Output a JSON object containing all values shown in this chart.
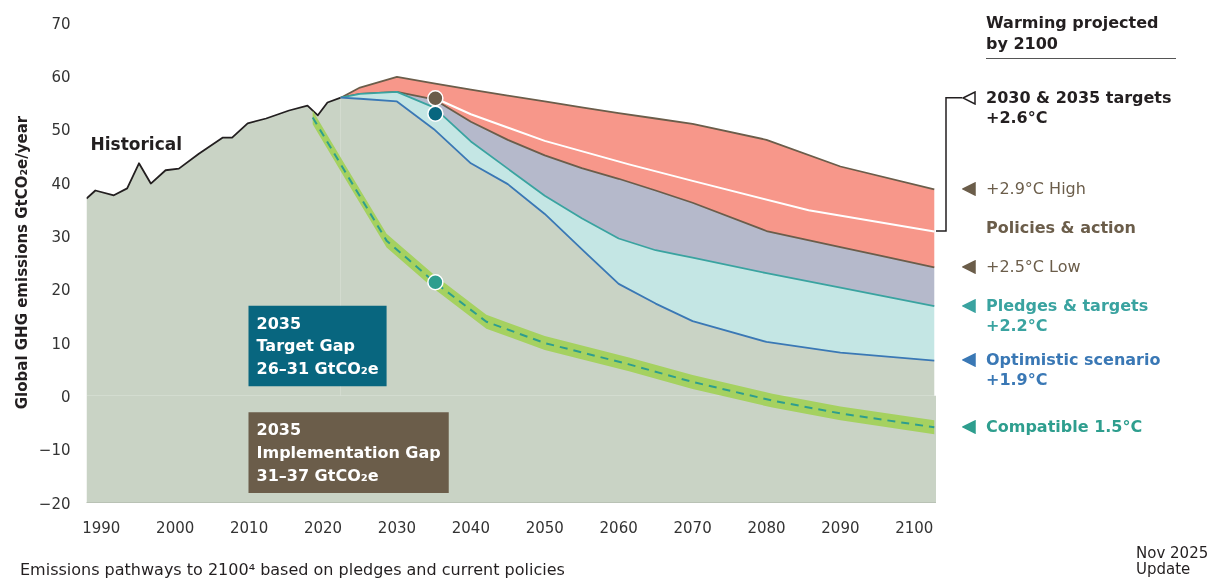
{
  "chart_data": {
    "type": "line",
    "legend": "right",
    "ylabel": "Global GHG emissions GtCO₂e/year",
    "legend_title": "Warming projected by 2100",
    "xlim": [
      1988,
      2103
    ],
    "xticks": [
      1990,
      2000,
      2010,
      2020,
      2030,
      2040,
      2050,
      2060,
      2070,
      2080,
      2090,
      2100
    ],
    "ylim": [
      -20,
      70
    ],
    "yticks": [
      -20,
      -10,
      0,
      10,
      20,
      30,
      40,
      50,
      60,
      70
    ],
    "bands": [
      {
        "axis": "y",
        "from": -20,
        "to": 0,
        "color": "#c9d3c5"
      }
    ],
    "series": [
      {
        "name": "Historical",
        "color": "#231f20",
        "x": [
          1988,
          1989.2,
          1991.7,
          1993.5,
          1995.1,
          1996.7,
          1998.7,
          2000.5,
          2003.2,
          2006.4,
          2007.7,
          2009.8,
          2012.3,
          2015.4,
          2017.9,
          2019.3,
          2020.6,
          2022.4
        ],
        "values": [
          37,
          38.5,
          37.6,
          38.9,
          43.6,
          39.8,
          42.3,
          42.6,
          45.4,
          48.4,
          48.4,
          51.1,
          52,
          53.5,
          54.4,
          52.6,
          55,
          55.9
        ],
        "lower": [
          0,
          0,
          0,
          0,
          0,
          0,
          0,
          0,
          0,
          0,
          0,
          0,
          0,
          0,
          0,
          0,
          0,
          0
        ],
        "upper": [
          37,
          38.5,
          37.6,
          38.9,
          43.6,
          39.8,
          42.3,
          42.6,
          45.4,
          48.4,
          48.4,
          51.1,
          52,
          53.5,
          54.4,
          52.6,
          55,
          55.9
        ]
      },
      {
        "name": "+2.9°C High",
        "color": "#6b5d4a",
        "x": [
          2022.4,
          2025,
          2030,
          2035,
          2040,
          2045,
          2050,
          2055,
          2060,
          2065,
          2070,
          2080,
          2090,
          2102.7
        ],
        "values": [
          55.9,
          57.8,
          59.8,
          58.6,
          57.4,
          56.3,
          55.2,
          54.1,
          53,
          52,
          51,
          48,
          43,
          38.7
        ],
        "lower": [
          55.9,
          56.6,
          57,
          55.6,
          51.4,
          48,
          45.1,
          42.7,
          40.7,
          38.5,
          36.2,
          30.9,
          27.9,
          24.1
        ],
        "upper": [
          55.9,
          57.8,
          59.8,
          58.6,
          57.4,
          56.3,
          55.2,
          54.1,
          53,
          52,
          51,
          48,
          43,
          38.7
        ]
      },
      {
        "name": "+2.5°C Low",
        "color": "#6b5d4a",
        "x": [
          2022.4,
          2025,
          2030,
          2035,
          2040,
          2045,
          2050,
          2055,
          2060,
          2065,
          2070,
          2080,
          2090,
          2102.7
        ],
        "values": [
          55.9,
          56.6,
          57,
          55.6,
          51.4,
          48,
          45.1,
          42.7,
          40.7,
          38.5,
          36.2,
          30.9,
          27.9,
          24.1
        ],
        "lower": [
          55.9,
          56.6,
          57,
          54.1,
          47.7,
          42.6,
          37.5,
          33.3,
          29.5,
          27.3,
          25.9,
          23,
          20.3,
          16.8
        ],
        "upper": [
          55.9,
          56.6,
          57,
          55.6,
          51.4,
          48,
          45.1,
          42.7,
          40.7,
          38.5,
          36.2,
          30.9,
          27.9,
          24.1
        ]
      },
      {
        "name": "Pledges & targets +2.2°C",
        "color": "#3aa3a0",
        "x": [
          2022.4,
          2025,
          2030,
          2035,
          2040,
          2045,
          2050,
          2055,
          2060,
          2065,
          2070,
          2080,
          2090,
          2102.7
        ],
        "values": [
          55.9,
          56.6,
          57,
          54.1,
          47.7,
          42.6,
          37.5,
          33.3,
          29.5,
          27.3,
          25.9,
          23,
          20.3,
          16.8
        ],
        "lower": [
          55.9,
          55.7,
          55.2,
          50,
          43.6,
          39.7,
          34.1,
          27.5,
          21,
          17.3,
          14,
          10.1,
          8.1,
          6.6
        ],
        "upper": [
          55.9,
          56.6,
          57,
          54.1,
          47.7,
          42.6,
          37.5,
          33.3,
          29.5,
          27.3,
          25.9,
          23,
          20.3,
          16.8
        ]
      },
      {
        "name": "Optimistic scenario +1.9°C",
        "color": "#3a78b5",
        "x": [
          2022.4,
          2025,
          2030,
          2035,
          2040,
          2045,
          2050,
          2055,
          2060,
          2065,
          2070,
          2080,
          2090,
          2102.7
        ],
        "values": [
          55.9,
          55.7,
          55.2,
          50,
          43.6,
          39.7,
          34.1,
          27.5,
          21,
          17.3,
          14,
          10.1,
          8.1,
          6.6
        ],
        "lower": [
          0,
          0,
          0,
          0,
          0,
          0,
          0,
          0,
          0,
          0,
          0,
          0,
          0,
          0
        ],
        "upper": [
          55.9,
          55.7,
          55.2,
          50,
          43.6,
          39.7,
          34.1,
          27.5,
          21,
          17.3,
          14,
          10.1,
          8.1,
          6.6
        ]
      },
      {
        "name": "2030 & 2035 targets +2.6°C",
        "color": "#ffffff",
        "x": [
          2035.2,
          2040,
          2050,
          2061.4,
          2070,
          2085.7,
          2102.7
        ],
        "values": [
          55.8,
          52.8,
          47.8,
          43.4,
          40.3,
          34.8,
          30.8
        ]
      },
      {
        "name": "Compatible 1.5°C",
        "color": "#2e9e8e",
        "line_style": "dashed",
        "x": [
          2018.6,
          2023,
          2028.6,
          2035.1,
          2042.1,
          2050,
          2061.4,
          2070,
          2080.8,
          2090,
          2102.7
        ],
        "values": [
          52.2,
          42,
          29.1,
          21.3,
          13.9,
          9.9,
          5.9,
          2.6,
          -0.9,
          -3.3,
          -5.9
        ],
        "lower": [
          50.9,
          40.7,
          27.8,
          20,
          12.6,
          8.6,
          4.6,
          1.3,
          -2.2,
          -4.6,
          -7.2
        ],
        "upper": [
          53.5,
          43.3,
          30.4,
          22.6,
          15.2,
          11.2,
          7.2,
          3.9,
          0.4,
          -2,
          -4.6
        ]
      },
      {
        "type": "scatter",
        "x": [
          2035.2,
          2035.2,
          2035.2
        ],
        "values": [
          55.8,
          52.9,
          21.3
        ],
        "colors": [
          "#6b5d4a",
          "#08667f",
          "#2e9e8e"
        ]
      }
    ],
    "annotations": [
      "2035\nTarget Gap\n26–31 GtCO₂e",
      "2035\nImplementation Gap\n31–37 GtCO₂e",
      "Policies & action",
      "Emissions pathways to 2100⁴ based on pledges and current policies",
      "Nov 2025 Update"
    ]
  }
}
